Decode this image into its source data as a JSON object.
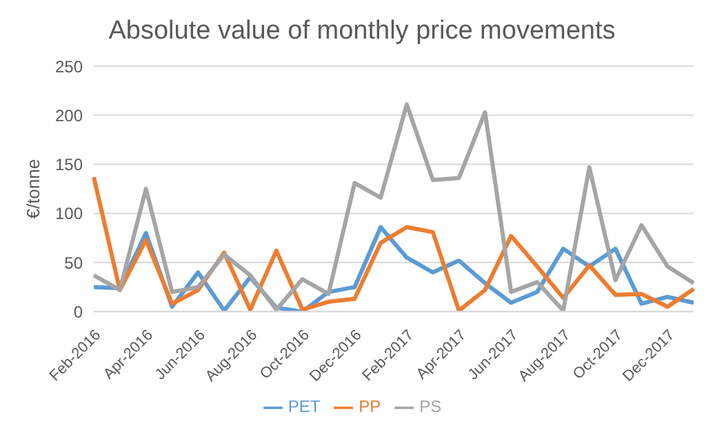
{
  "chart_data": {
    "type": "line",
    "title": "Absolute value of monthly price movements",
    "ylabel": "€/tonne",
    "categories": [
      "Feb-2016",
      null,
      "Apr-2016",
      null,
      "Jun-2016",
      null,
      "Aug-2016",
      null,
      "Oct-2016",
      null,
      "Dec-2016",
      null,
      "Feb-2017",
      null,
      "Apr-2017",
      null,
      "Jun-2017",
      null,
      "Aug-2017",
      null,
      "Oct-2017",
      null,
      "Dec-2017",
      null
    ],
    "series": [
      {
        "name": "PET",
        "color": "#5b9bd5",
        "values": [
          25,
          24,
          80,
          5,
          40,
          1,
          35,
          4,
          0,
          20,
          25,
          86,
          55,
          40,
          52,
          29,
          9,
          20,
          64,
          46,
          64,
          8,
          15,
          9
        ]
      },
      {
        "name": "PP",
        "color": "#ed7d31",
        "values": [
          137,
          22,
          73,
          8,
          22,
          60,
          2,
          62,
          2,
          10,
          13,
          70,
          86,
          81,
          1,
          22,
          77,
          46,
          14,
          47,
          17,
          18,
          5,
          23
        ]
      },
      {
        "name": "PS",
        "color": "#a5a5a5",
        "values": [
          37,
          22,
          125,
          20,
          25,
          58,
          37,
          2,
          33,
          18,
          131,
          116,
          211,
          134,
          136,
          203,
          20,
          30,
          1,
          147,
          32,
          88,
          46,
          29
        ]
      }
    ],
    "ylim": [
      0,
      250
    ],
    "yticks": [
      0,
      50,
      100,
      150,
      200,
      250
    ],
    "grid": "y",
    "legend": "bottom",
    "marker": "none",
    "line_style": "solid"
  }
}
